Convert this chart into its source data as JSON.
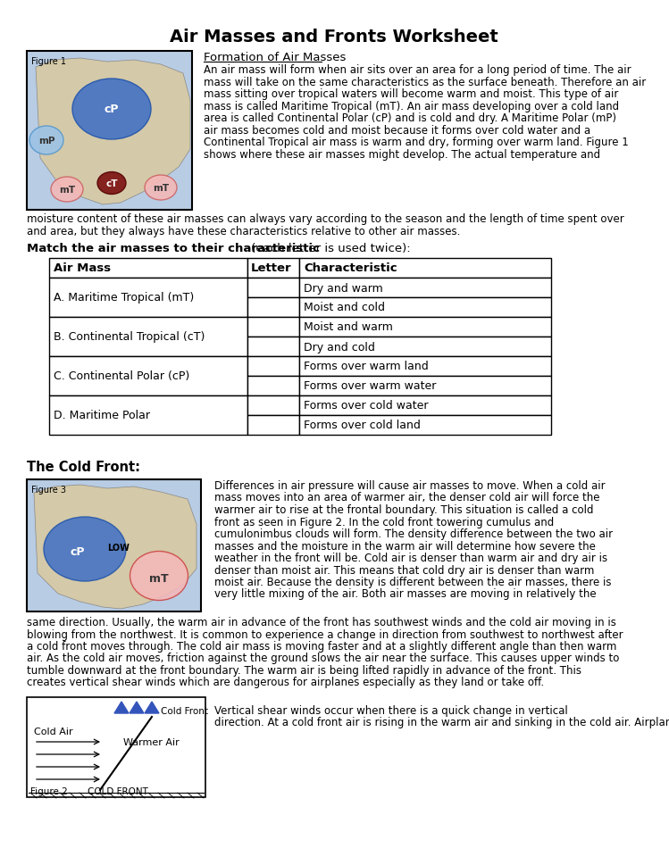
{
  "title": "Air Masses and Fronts Worksheet",
  "bg_color": "#ffffff",
  "text_color": "#000000",
  "formation_heading": "Formation of Air Masses",
  "formation_para1": "An air mass will form when air sits over an area for a long period of time. The air\nmass will take on the same characteristics as the surface beneath. Therefore an air\nmass sitting over tropical waters will become warm and moist. This type of air\nmass is called Maritime Tropical (mT). An air mass developing over a cold land\narea is called Continental Polar (cP) and is cold and dry. A Maritime Polar (mP)\nair mass becomes cold and moist because it forms over cold water and a\nContinental Tropical air mass is warm and dry, forming over warm land. Figure 1\nshows where these air masses might develop. The actual temperature and",
  "formation_para2": "moisture content of these air masses can always vary according to the season and the length of time spent over\nand area, but they always have these characteristics relative to other air masses.",
  "match_bold": "Match the air masses to their characteristic",
  "match_normal": " (each letter is used twice):",
  "air_masses": [
    "A. Maritime Tropical (mT)",
    "B. Continental Tropical (cT)",
    "C. Continental Polar (cP)",
    "D. Maritime Polar"
  ],
  "characteristics": [
    "Dry and warm",
    "Moist and cold",
    "Moist and warm",
    "Dry and cold",
    "Forms over warm land",
    "Forms over warm water",
    "Forms over cold water",
    "Forms over cold land"
  ],
  "cold_front_heading": "The Cold Front:",
  "cold_front_para1": "Differences in air pressure will cause air masses to move. When a cold air\nmass moves into an area of warmer air, the denser cold air will force the\nwarmer air to rise at the frontal boundary. This situation is called a cold\nfront as seen in Figure 2. In the cold front towering cumulus and\ncumulonimbus clouds will form. The density difference between the two air\nmasses and the moisture in the warm air will determine how severe the\nweather in the front will be. Cold air is denser than warm air and dry air is\ndenser than moist air. This means that cold dry air is denser than warm\nmoist air. Because the density is different between the air masses, there is\nvery little mixing of the air. Both air masses are moving in relatively the",
  "cold_front_para2": "same direction. Usually, the warm air in advance of the front has southwest winds and the cold air moving in is\nblowing from the northwest. It is common to experience a change in direction from southwest to northwest after\na cold front moves through. The cold air mass is moving faster and at a slightly different angle than then warm\nair. As the cold air moves, friction against the ground slows the air near the surface. This causes upper winds to\ntumble downward at the front boundary. The warm air is being lifted rapidly in advance of the front. This\ncreates vertical shear winds which are dangerous for airplanes especially as they land or take off.",
  "vertical_shear_para": "Vertical shear winds occur when there is a quick change in vertical\ndirection. At a cold front air is rising in the warm air and sinking in the cold air. Airplanes cannot adjust for the",
  "ocean_color": "#b8cce4",
  "land_color": "#d4c9a8",
  "cp_color": "#4472c4",
  "mp_color": "#9dc3e6",
  "ct_color": "#7b1010",
  "mt_color": "#f4b8b8"
}
